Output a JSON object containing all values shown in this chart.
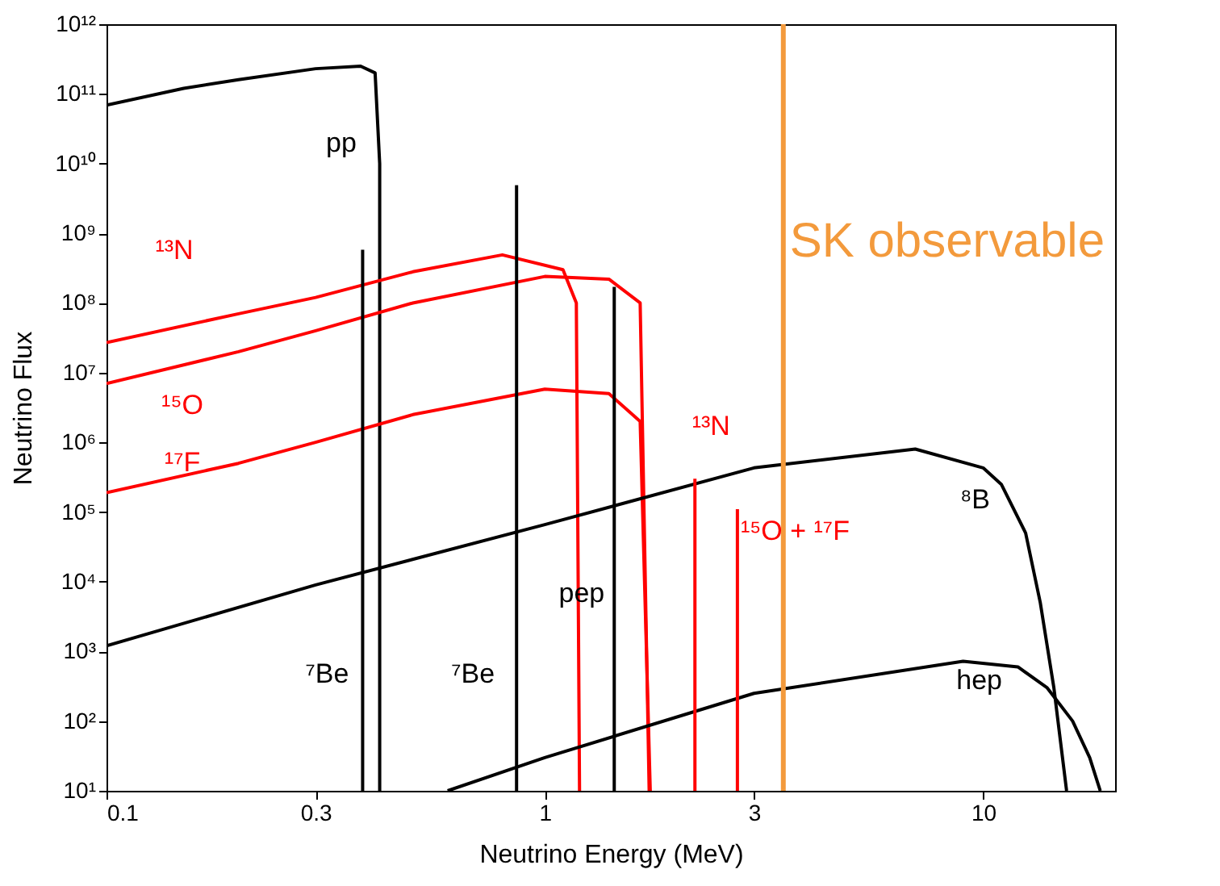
{
  "chart_data": {
    "type": "line",
    "xlabel": "Neutrino Energy (MeV)",
    "ylabel": "Neutrino Flux",
    "log": "xy",
    "grid": false,
    "xlim": [
      0.1,
      20
    ],
    "xticks": [
      0.1,
      0.3,
      1,
      3,
      10
    ],
    "ylim": [
      10,
      1000000000000
    ],
    "yticks": [
      {
        "value": 10,
        "label": "10¹"
      },
      {
        "value": 100,
        "label": "10²"
      },
      {
        "value": 1000,
        "label": "10³"
      },
      {
        "value": 10000,
        "label": "10⁴"
      },
      {
        "value": 100000,
        "label": "10⁵"
      },
      {
        "value": 1000000,
        "label": "10⁶"
      },
      {
        "value": 10000000,
        "label": "10⁷"
      },
      {
        "value": 100000000,
        "label": "10⁸"
      },
      {
        "value": 1000000000,
        "label": "10⁹"
      },
      {
        "value": 10000000000,
        "label": "10¹⁰"
      },
      {
        "value": 100000000000,
        "label": "10¹¹"
      },
      {
        "value": 1000000000000,
        "label": "10¹²"
      }
    ],
    "series": [
      {
        "name": "pp",
        "color": "#000000",
        "x": [
          0.1,
          0.15,
          0.2,
          0.3,
          0.38,
          0.41,
          0.42,
          0.42
        ],
        "values": [
          69000000000,
          120000000000,
          160000000000,
          230000000000,
          250000000000,
          200000000000,
          10000000000,
          10
        ]
      },
      {
        "name": "¹³N",
        "color": "#ff0000",
        "x": [
          0.1,
          0.2,
          0.3,
          0.5,
          0.8,
          1.1,
          1.18,
          1.2
        ],
        "values": [
          27000000,
          70000000,
          120000000,
          280000000,
          490000000,
          300000000,
          100000000,
          10
        ]
      },
      {
        "name": "¹⁵O",
        "color": "#ff0000",
        "x": [
          0.1,
          0.2,
          0.3,
          0.5,
          1,
          1.4,
          1.65,
          1.73
        ],
        "values": [
          7000000,
          20000000,
          40000000,
          100000000,
          240000000,
          220000000,
          100000000,
          10
        ]
      },
      {
        "name": "¹⁷F",
        "color": "#ff0000",
        "x": [
          0.1,
          0.2,
          0.3,
          0.5,
          1,
          1.4,
          1.65,
          1.74
        ],
        "values": [
          190000,
          500000,
          1000000,
          2500000,
          5800000,
          5000000,
          2000000,
          10
        ]
      },
      {
        "name": "⁸B",
        "color": "#000000",
        "x": [
          0.1,
          0.3,
          1,
          3,
          7,
          10,
          11,
          12.5,
          13.5,
          14.5,
          15.5
        ],
        "values": [
          1200,
          9000,
          66000,
          430000,
          800000,
          430000,
          250000,
          50000,
          5000,
          300,
          10
        ]
      },
      {
        "name": "hep",
        "color": "#000000",
        "x": [
          0.6,
          1,
          3,
          9,
          12,
          14,
          16,
          17.5,
          18.5
        ],
        "values": [
          10,
          30,
          250,
          720,
          600,
          300,
          100,
          30,
          10
        ]
      },
      {
        "name": "⁷Be",
        "color": "#000000",
        "x": [
          0.384,
          0.384
        ],
        "values": [
          10,
          580000000
        ]
      },
      {
        "name": "⁷Be",
        "color": "#000000",
        "x": [
          0.862,
          0.862
        ],
        "values": [
          10,
          4900000000
        ]
      },
      {
        "name": "pep",
        "color": "#000000",
        "x": [
          1.44,
          1.44
        ],
        "values": [
          10,
          170000000
        ]
      },
      {
        "name": "¹³N",
        "color": "#ff0000",
        "x": [
          2.2,
          2.2
        ],
        "values": [
          10,
          300000
        ]
      },
      {
        "name": "¹⁵O + ¹⁷F",
        "color": "#ff0000",
        "x": [
          2.75,
          2.75
        ],
        "values": [
          10,
          110000
        ]
      }
    ],
    "ref_lines": [
      {
        "axis": "x",
        "value": 3.5,
        "label": "SK observable",
        "color": "#f39a3c"
      }
    ]
  }
}
